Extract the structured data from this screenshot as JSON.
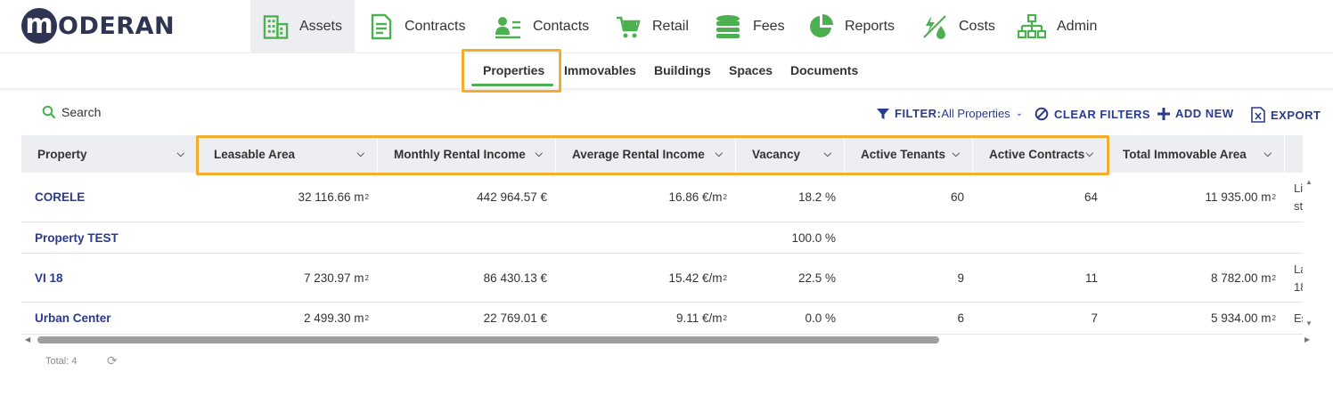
{
  "logo": {
    "mark": "m",
    "text": "ODERAN"
  },
  "nav": {
    "items": [
      {
        "label": "Assets",
        "icon": "building-icon",
        "active": true
      },
      {
        "label": "Contracts",
        "icon": "document-icon"
      },
      {
        "label": "Contacts",
        "icon": "contact-card-icon"
      },
      {
        "label": "Retail",
        "icon": "shopping-cart-icon"
      },
      {
        "label": "Fees",
        "icon": "coin-stack-icon"
      },
      {
        "label": "Reports",
        "icon": "pie-chart-icon"
      },
      {
        "label": "Costs",
        "icon": "energy-water-icon"
      },
      {
        "label": "Admin",
        "icon": "hierarchy-icon"
      }
    ]
  },
  "subnav": {
    "items": [
      {
        "label": "Properties",
        "active": true
      },
      {
        "label": "Immovables"
      },
      {
        "label": "Buildings"
      },
      {
        "label": "Spaces"
      },
      {
        "label": "Documents"
      }
    ]
  },
  "toolbar": {
    "search_label": "Search",
    "filter_label": "FILTER:",
    "filter_value": "All Properties",
    "clear_label": "CLEAR FILTERS",
    "add_label": "ADD NEW",
    "export_label": "EXPORT"
  },
  "table": {
    "columns": [
      "Property",
      "Leasable Area",
      "Monthly Rental Income",
      "Average Rental Income",
      "Vacancy",
      "Active Tenants",
      "Active Contracts",
      "Total Immovable Area"
    ],
    "rows": [
      {
        "property": "CORELE",
        "leasable_area": "32 116.66 m",
        "monthly_income": "442 964.57 €",
        "avg_income": "16.86 €/m",
        "vacancy": "18.2 %",
        "tenants": "60",
        "contracts": "64",
        "immovable_area": "11 935.00 m",
        "cut": [
          "Li",
          "st"
        ]
      },
      {
        "property": "Property TEST",
        "leasable_area": "",
        "monthly_income": "",
        "avg_income": "",
        "vacancy": "100.0 %",
        "tenants": "",
        "contracts": "",
        "immovable_area": "",
        "cut": []
      },
      {
        "property": "VI 18",
        "leasable_area": "7 230.97 m",
        "monthly_income": "86 430.13 €",
        "avg_income": "15.42 €/m",
        "vacancy": "22.5 %",
        "tenants": "9",
        "contracts": "11",
        "immovable_area": "8 782.00 m",
        "cut": [
          "La",
          "18"
        ]
      },
      {
        "property": "Urban Center",
        "leasable_area": "2 499.30 m",
        "monthly_income": "22 769.01 €",
        "avg_income": "9.11 €/m",
        "vacancy": "0.0 %",
        "tenants": "6",
        "contracts": "7",
        "immovable_area": "5 934.00 m",
        "cut": [
          "Es"
        ]
      }
    ],
    "sup": "2"
  },
  "footer": {
    "total": "Total: 4"
  },
  "colors": {
    "accent_green": "#4caf50",
    "link_blue": "#2a3a8f",
    "highlight": "#f2ad2b",
    "brand_dark": "#2f3452"
  }
}
